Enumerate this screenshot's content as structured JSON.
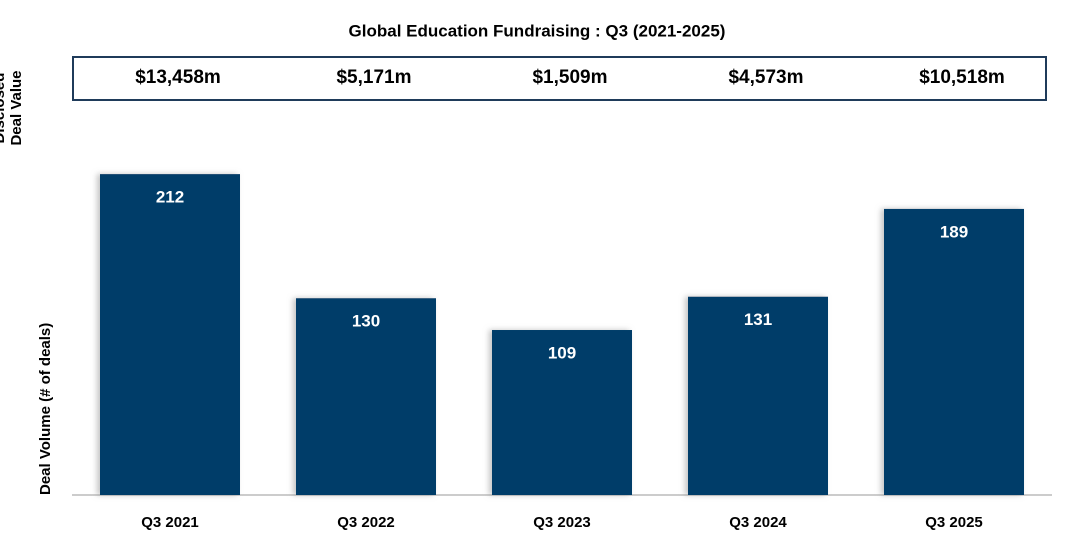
{
  "chart_data": {
    "type": "bar",
    "title": "Global Education Fundraising : Q3 (2021-2025)",
    "y_label": "Deal Volume (# of deals)",
    "categories": [
      "Q3 2021",
      "Q3 2022",
      "Q3 2023",
      "Q3 2024",
      "Q3 2025"
    ],
    "values": [
      212,
      130,
      109,
      131,
      189
    ],
    "color": "#023e69",
    "ylim": [
      0,
      220
    ],
    "deal_value": {
      "label": "Disclosed Deal Value",
      "values": [
        13458,
        5171,
        1509,
        4573,
        10518
      ],
      "value_labels": [
        "$13,458m",
        "$5,171m",
        "$1,509m",
        "$4,573m",
        "$10,518m"
      ]
    }
  }
}
